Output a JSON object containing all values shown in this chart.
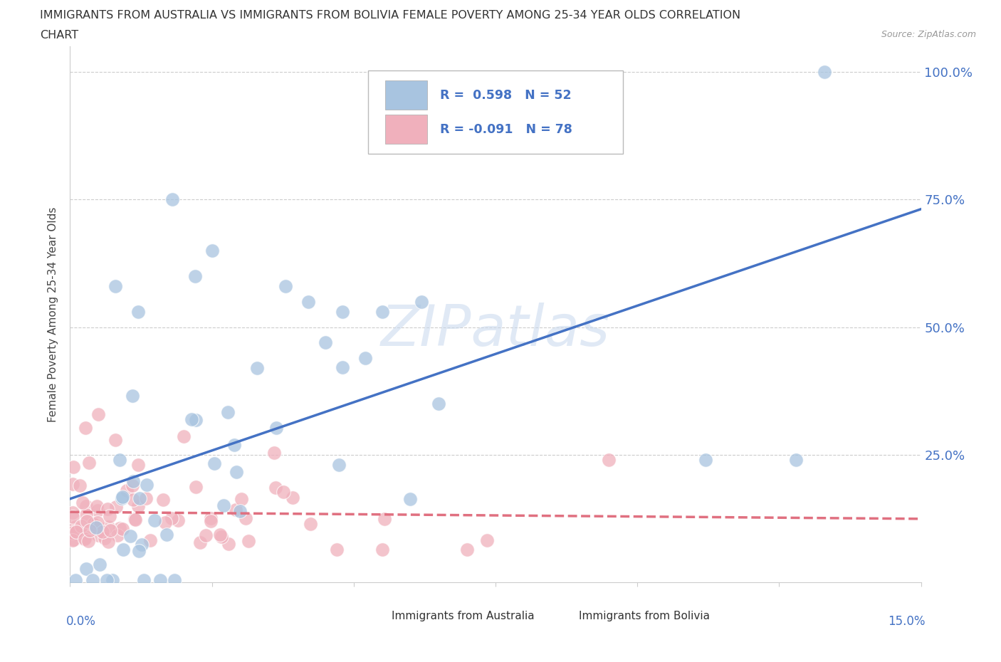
{
  "title_line1": "IMMIGRANTS FROM AUSTRALIA VS IMMIGRANTS FROM BOLIVIA FEMALE POVERTY AMONG 25-34 YEAR OLDS CORRELATION",
  "title_line2": "CHART",
  "source": "Source: ZipAtlas.com",
  "ylabel": "Female Poverty Among 25-34 Year Olds",
  "aus_R": 0.598,
  "aus_N": 52,
  "bol_R": -0.091,
  "bol_N": 78,
  "aus_color": "#a8c4e0",
  "bol_color": "#f0b0bc",
  "aus_line_color": "#4472c4",
  "bol_line_color": "#e07080",
  "watermark": "ZIPatlas",
  "background_color": "#ffffff",
  "grid_color": "#cccccc",
  "title_color": "#333333",
  "tick_label_color": "#4472c4",
  "ytick_positions": [
    0.0,
    0.25,
    0.5,
    0.75,
    1.0
  ],
  "ytick_labels": [
    "",
    "25.0%",
    "50.0%",
    "75.0%",
    "100.0%"
  ]
}
